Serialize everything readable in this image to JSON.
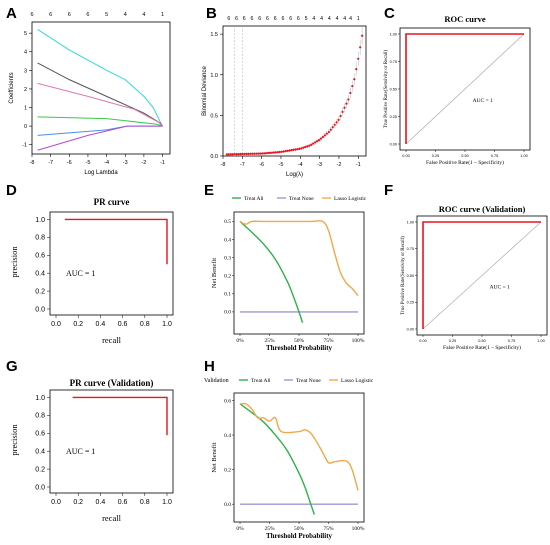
{
  "panels": {
    "A": {
      "letter": "A"
    },
    "B": {
      "letter": "B"
    },
    "C": {
      "letter": "C"
    },
    "D": {
      "letter": "D"
    },
    "E": {
      "letter": "E"
    },
    "F": {
      "letter": "F"
    },
    "G": {
      "letter": "G"
    },
    "H": {
      "letter": "H"
    }
  },
  "chart_data": [
    {
      "panel": "A",
      "type": "line",
      "title": "",
      "xlabel": "Log Lambda",
      "ylabel": "Coefficients",
      "xlim": [
        -8,
        -0.6
      ],
      "ylim": [
        -1.5,
        5.6
      ],
      "xticks": [
        -8,
        -7,
        -6,
        -5,
        -4,
        -3,
        -2,
        -1
      ],
      "yticks": [
        -1,
        0,
        1,
        2,
        3,
        4,
        5
      ],
      "top_axis_x": [
        -8,
        -7,
        -6,
        -5,
        -4,
        -3,
        -2,
        -1
      ],
      "top_axis_labels": [
        "6",
        "6",
        "6",
        "6",
        "5",
        "4",
        "4",
        "1"
      ],
      "series": [
        {
          "color": "#33d6e6",
          "x": [
            -7.7,
            -6,
            -4,
            -3,
            -2,
            -1.5,
            -1.2,
            -1.05,
            -1
          ],
          "y": [
            5.2,
            4.1,
            3.0,
            2.5,
            1.6,
            1.0,
            0.4,
            0.05,
            0
          ]
        },
        {
          "color": "#555555",
          "x": [
            -7.7,
            -6,
            -4,
            -2,
            -1.1,
            -1
          ],
          "y": [
            3.4,
            2.5,
            1.6,
            0.7,
            0.15,
            0
          ]
        },
        {
          "color": "#e07ab0",
          "x": [
            -7.7,
            -5,
            -2.5,
            -1.2,
            -1
          ],
          "y": [
            2.3,
            1.6,
            0.9,
            0.2,
            0
          ]
        },
        {
          "color": "#3cc84a",
          "x": [
            -7.7,
            -4,
            -1.3,
            -1
          ],
          "y": [
            0.5,
            0.4,
            0.1,
            0
          ]
        },
        {
          "color": "#4d8ee6",
          "x": [
            -7.7,
            -4,
            -2.9,
            -1.2,
            -1
          ],
          "y": [
            -0.5,
            -0.2,
            0,
            0,
            0
          ]
        },
        {
          "color": "#b04ad8",
          "x": [
            -7.7,
            -5,
            -2.9,
            -1.2,
            -1
          ],
          "y": [
            -1.3,
            -0.5,
            0,
            0,
            0
          ]
        }
      ]
    },
    {
      "panel": "B",
      "type": "scatter",
      "title": "",
      "xlabel": "Log(λ)",
      "ylabel": "Binomial Deviance",
      "xlim": [
        -8,
        -0.6
      ],
      "ylim": [
        0,
        1.6
      ],
      "xticks": [
        -8,
        -7,
        -6,
        -5,
        -4,
        -3,
        -2,
        -1
      ],
      "yticks": [
        0.0,
        0.5,
        1.0,
        1.5
      ],
      "top_axis_x": [
        -7.7,
        -7.3,
        -6.9,
        -6.5,
        -6.1,
        -5.7,
        -5.3,
        -4.9,
        -4.5,
        -4.1,
        -3.7,
        -3.3,
        -2.9,
        -2.5,
        -2.1,
        -1.7,
        -1.4,
        -1.0
      ],
      "top_axis_labels": [
        "6",
        "6",
        "6",
        "6",
        "6",
        "6",
        "6",
        "6",
        "6",
        "6",
        "5",
        "4",
        "4",
        "4",
        "4",
        "4",
        "4",
        "1"
      ],
      "vlines": [
        -7.4,
        -7.0
      ],
      "deviance_x": [
        -7.8,
        -7,
        -6,
        -5,
        -4,
        -3.5,
        -3,
        -2.5,
        -2,
        -1.5,
        -1.2,
        -1.0,
        -0.8
      ],
      "deviance_y": [
        0.02,
        0.025,
        0.03,
        0.05,
        0.09,
        0.13,
        0.2,
        0.3,
        0.45,
        0.7,
        0.95,
        1.2,
        1.48
      ],
      "point_color": "#e8141e"
    },
    {
      "panel": "C",
      "type": "line",
      "title": "ROC curve",
      "xlabel": "False Positive Rate(1 – Specificity)",
      "ylabel": "True Positive Rate(Sensivity or Recall)",
      "xlim": [
        0,
        1
      ],
      "ylim": [
        0,
        1
      ],
      "xticks": [
        0,
        0.25,
        0.5,
        0.75,
        1
      ],
      "xtick_labels": [
        "0.00",
        "0.25",
        "0.50",
        "0.75",
        "1.00"
      ],
      "yticks": [
        0,
        0.25,
        0.5,
        0.75,
        1
      ],
      "ytick_labels": [
        "0.00",
        "0.25",
        "0.50",
        "0.75",
        "1.00"
      ],
      "annotation": "AUC = 1",
      "series": [
        {
          "color": "#e8141e",
          "x": [
            0,
            0,
            1
          ],
          "y": [
            0,
            1,
            1
          ]
        },
        {
          "color": "#b4b4b4",
          "x": [
            0,
            1
          ],
          "y": [
            0,
            1
          ]
        }
      ]
    },
    {
      "panel": "D",
      "type": "line",
      "title": "PR curve",
      "xlabel": "recall",
      "ylabel": "precision",
      "xlim": [
        0,
        1
      ],
      "ylim": [
        0,
        1.05
      ],
      "xticks": [
        0,
        0.2,
        0.4,
        0.6,
        0.8,
        1.0
      ],
      "xtick_labels": [
        "0.0",
        "0.2",
        "0.4",
        "0.6",
        "0.8",
        "1.0"
      ],
      "yticks": [
        0,
        0.2,
        0.4,
        0.6,
        0.8,
        1.0
      ],
      "ytick_labels": [
        "0.0",
        "0.2",
        "0.4",
        "0.6",
        "0.8",
        "1.0"
      ],
      "annotation": "AUC = 1",
      "series": [
        {
          "color": "#e8141e",
          "x": [
            0.08,
            1.0,
            1.0
          ],
          "y": [
            1.0,
            1.0,
            0.5
          ]
        }
      ]
    },
    {
      "panel": "E",
      "type": "line",
      "title": "",
      "xlabel": "Threshold Probability",
      "ylabel": "Net Benefit",
      "xlim": [
        0,
        1
      ],
      "ylim": [
        -0.1,
        0.53
      ],
      "xticks": [
        0,
        0.25,
        0.5,
        0.75,
        1
      ],
      "xtick_labels": [
        "0%",
        "25%",
        "50%",
        "75%",
        "100%"
      ],
      "yticks": [
        0,
        0.1,
        0.2,
        0.3,
        0.4,
        0.5
      ],
      "ytick_labels": [
        "0.0",
        "0.1",
        "0.2",
        "0.3",
        "0.4",
        "0.5"
      ],
      "legend_title": "",
      "series": [
        {
          "name": "Treat All",
          "color": "#2fb14a",
          "x": [
            0,
            0.1,
            0.2,
            0.3,
            0.4,
            0.45,
            0.5,
            0.53
          ],
          "y": [
            0.5,
            0.44,
            0.375,
            0.29,
            0.17,
            0.09,
            0.0,
            -0.06
          ]
        },
        {
          "name": "Treat None",
          "color": "#9e98cf",
          "x": [
            0,
            1
          ],
          "y": [
            0,
            0
          ]
        },
        {
          "name": "Lasso Logistic",
          "color": "#f4a74a",
          "x": [
            0,
            0.05,
            0.1,
            0.2,
            0.4,
            0.6,
            0.7,
            0.75,
            0.8,
            0.85,
            0.9,
            0.95,
            1.0
          ],
          "y": [
            0.5,
            0.485,
            0.5,
            0.5,
            0.5,
            0.5,
            0.5,
            0.45,
            0.33,
            0.22,
            0.16,
            0.13,
            0.09
          ]
        }
      ]
    },
    {
      "panel": "F",
      "type": "line",
      "title": "ROC curve (Validation)",
      "xlabel": "False Positive Rate(1 – Specificity)",
      "ylabel": "True Positive Rate(Sensivity or Recall)",
      "xlim": [
        0,
        1
      ],
      "ylim": [
        0,
        1
      ],
      "xticks": [
        0,
        0.25,
        0.5,
        0.75,
        1
      ],
      "xtick_labels": [
        "0.00",
        "0.25",
        "0.50",
        "0.75",
        "1.00"
      ],
      "yticks": [
        0,
        0.25,
        0.5,
        0.75,
        1
      ],
      "ytick_labels": [
        "0.00",
        "0.25",
        "0.50",
        "0.75",
        "1.00"
      ],
      "annotation": "AUC = 1",
      "series": [
        {
          "color": "#e8141e",
          "x": [
            0,
            0,
            1
          ],
          "y": [
            0,
            1,
            1
          ]
        },
        {
          "color": "#b4b4b4",
          "x": [
            0,
            1
          ],
          "y": [
            0,
            1
          ]
        }
      ]
    },
    {
      "panel": "G",
      "type": "line",
      "title": "PR curve (Validation)",
      "xlabel": "recall",
      "ylabel": "precision",
      "xlim": [
        0,
        1
      ],
      "ylim": [
        0,
        1.05
      ],
      "xticks": [
        0,
        0.2,
        0.4,
        0.6,
        0.8,
        1.0
      ],
      "xtick_labels": [
        "0.0",
        "0.2",
        "0.4",
        "0.6",
        "0.8",
        "1.0"
      ],
      "yticks": [
        0,
        0.2,
        0.4,
        0.6,
        0.8,
        1.0
      ],
      "ytick_labels": [
        "0.0",
        "0.2",
        "0.4",
        "0.6",
        "0.8",
        "1.0"
      ],
      "annotation": "AUC = 1",
      "series": [
        {
          "color": "#e8141e",
          "x": [
            0.15,
            1.0,
            1.0
          ],
          "y": [
            1.0,
            1.0,
            0.58
          ]
        }
      ]
    },
    {
      "panel": "H",
      "type": "line",
      "title": "",
      "xlabel": "Threshold Probability",
      "ylabel": "Net Benefit",
      "xlim": [
        0,
        1
      ],
      "ylim": [
        -0.08,
        0.62
      ],
      "xticks": [
        0,
        0.25,
        0.5,
        0.75,
        1
      ],
      "xtick_labels": [
        "0%",
        "25%",
        "50%",
        "75%",
        "100%"
      ],
      "yticks": [
        0,
        0.2,
        0.4,
        0.6
      ],
      "ytick_labels": [
        "0.0",
        "0.2",
        "0.4",
        "0.6"
      ],
      "legend_title": "Validation",
      "series": [
        {
          "name": "Treat All",
          "color": "#2fb14a",
          "x": [
            0,
            0.1,
            0.2,
            0.3,
            0.4,
            0.5,
            0.55,
            0.6,
            0.63
          ],
          "y": [
            0.58,
            0.53,
            0.475,
            0.4,
            0.31,
            0.18,
            0.1,
            0.0,
            -0.06
          ]
        },
        {
          "name": "Treat None",
          "color": "#9e98cf",
          "x": [
            0,
            1
          ],
          "y": [
            0,
            0
          ]
        },
        {
          "name": "Lasso Logistic",
          "color": "#f4a74a",
          "x": [
            0,
            0.05,
            0.1,
            0.15,
            0.2,
            0.25,
            0.3,
            0.35,
            0.5,
            0.55,
            0.6,
            0.65,
            0.7,
            0.75,
            0.8,
            0.9,
            0.95,
            1.0
          ],
          "y": [
            0.58,
            0.58,
            0.55,
            0.5,
            0.5,
            0.48,
            0.5,
            0.42,
            0.42,
            0.43,
            0.41,
            0.36,
            0.3,
            0.24,
            0.245,
            0.25,
            0.2,
            0.08
          ]
        }
      ]
    }
  ]
}
